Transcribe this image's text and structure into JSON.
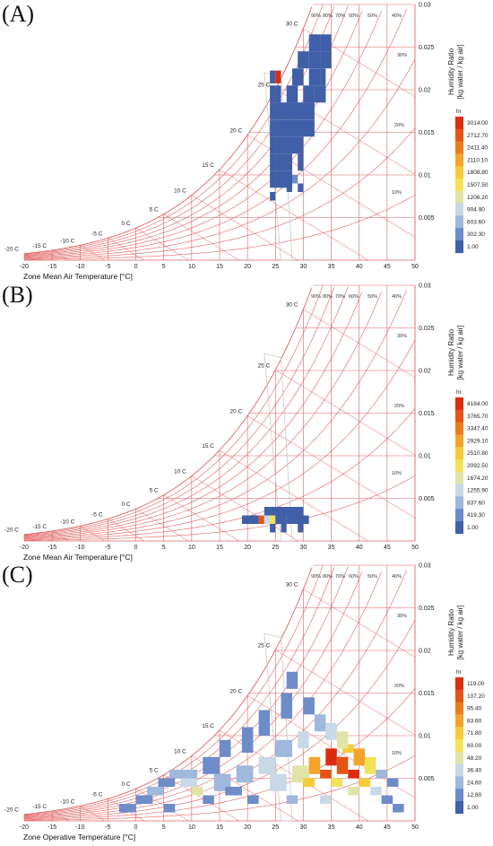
{
  "colors": {
    "grid": "#e06060",
    "boundary": "#c8c8c8",
    "scale": [
      "#3f5fa8",
      "#6d8cc8",
      "#9fb8dc",
      "#c8d8e6",
      "#e0e4a8",
      "#f2e25a",
      "#f6cc3a",
      "#f2a52a",
      "#ec7d1e",
      "#e45416",
      "#dc2c10"
    ]
  },
  "shared": {
    "x_ticks": [
      "-20",
      "-15",
      "-10",
      "-5",
      "0",
      "5",
      "10",
      "15",
      "20",
      "25",
      "30",
      "35",
      "40",
      "45",
      "50"
    ],
    "y_ticks": [
      "0.005",
      "0.01",
      "0.015",
      "0.02",
      "0.025",
      "0.03"
    ],
    "rh_labels": [
      "90%",
      "80%",
      "70%",
      "60%",
      "50%",
      "40%",
      "30%",
      "20%",
      "10%"
    ],
    "dry_labels": [
      "-20 C",
      "-15 C",
      "-10 C",
      "-5 C",
      "0 C",
      "5 C",
      "10 C",
      "15 C",
      "20 C",
      "25 C",
      "30 C"
    ],
    "side_title_1": "Humidity Ratio",
    "side_title_2": "[kg water / kg air]",
    "legend_unit": "hr"
  },
  "chart_data": [
    {
      "label": "(A)",
      "type": "heatmap",
      "xlabel": "Zone Mean Air Temperature [°C]",
      "xlim": [
        -20,
        50
      ],
      "ylim": [
        0,
        0.03
      ],
      "legend": [
        "3014.00",
        "2712.70",
        "2411.40",
        "2110.10",
        "1808.80",
        "1507.50",
        "1206.20",
        "904.90",
        "603.60",
        "302.30",
        "1.00"
      ],
      "cells": [
        [
          25,
          0.0215,
          1,
          0.0015,
          10
        ],
        [
          25,
          0.0195,
          1,
          0.002,
          0
        ],
        [
          25,
          0.0175,
          1,
          0.002,
          0
        ],
        [
          25,
          0.0155,
          1,
          0.002,
          0
        ],
        [
          24,
          0.0215,
          1,
          0.0015,
          0
        ],
        [
          24,
          0.0195,
          1,
          0.002,
          0
        ],
        [
          24,
          0.0175,
          1,
          0.002,
          0
        ],
        [
          24,
          0.0155,
          1,
          0.002,
          0
        ],
        [
          24,
          0.0135,
          1,
          0.002,
          0
        ],
        [
          24,
          0.0115,
          1,
          0.002,
          0
        ],
        [
          24,
          0.0095,
          1,
          0.002,
          0
        ],
        [
          24,
          0.0075,
          1,
          0.001,
          0
        ],
        [
          25,
          0.0135,
          1,
          0.002,
          0
        ],
        [
          25,
          0.0115,
          1,
          0.002,
          0
        ],
        [
          25,
          0.0095,
          1,
          0.002,
          0
        ],
        [
          26,
          0.0175,
          2,
          0.002,
          0
        ],
        [
          26,
          0.0155,
          2,
          0.002,
          0
        ],
        [
          26,
          0.0135,
          2,
          0.002,
          0
        ],
        [
          26,
          0.0115,
          2,
          0.002,
          0
        ],
        [
          26,
          0.0095,
          2,
          0.002,
          0
        ],
        [
          27,
          0.0195,
          2,
          0.002,
          0
        ],
        [
          28,
          0.0215,
          2,
          0.002,
          0
        ],
        [
          29,
          0.0235,
          2,
          0.002,
          0
        ],
        [
          28,
          0.0175,
          2,
          0.002,
          0
        ],
        [
          28,
          0.0155,
          2,
          0.002,
          0
        ],
        [
          28,
          0.0135,
          2,
          0.002,
          0
        ],
        [
          30,
          0.0195,
          2,
          0.002,
          0
        ],
        [
          30,
          0.0175,
          2,
          0.002,
          0
        ],
        [
          30,
          0.0155,
          2,
          0.002,
          0
        ],
        [
          31,
          0.0255,
          2,
          0.002,
          0
        ],
        [
          31,
          0.0235,
          2,
          0.002,
          0
        ],
        [
          31,
          0.0215,
          2,
          0.002,
          0
        ],
        [
          32,
          0.0195,
          2,
          0.002,
          0
        ],
        [
          33,
          0.0255,
          2,
          0.002,
          0
        ],
        [
          33,
          0.0235,
          2,
          0.002,
          0
        ],
        [
          33,
          0.0215,
          1,
          0.002,
          0
        ],
        [
          29,
          0.0115,
          1,
          0.002,
          0
        ],
        [
          28,
          0.0095,
          1,
          0.001,
          1
        ],
        [
          27,
          0.0085,
          1,
          0.001,
          0
        ],
        [
          29,
          0.0085,
          1,
          0.001,
          0
        ]
      ]
    },
    {
      "label": "(B)",
      "type": "heatmap",
      "xlabel": "Zone Mean Air Temperature [°C]",
      "xlim": [
        -20,
        50
      ],
      "ylim": [
        0,
        0.03
      ],
      "legend": [
        "4184.00",
        "3765.70",
        "3347.40",
        "2929.10",
        "2510.80",
        "2092.50",
        "1674.20",
        "1255.90",
        "837.60",
        "419.30",
        "1.00"
      ],
      "cells": [
        [
          19,
          0.0025,
          3,
          0.001,
          0
        ],
        [
          22,
          0.0025,
          1,
          0.001,
          9
        ],
        [
          23,
          0.0025,
          1,
          0.001,
          3
        ],
        [
          24,
          0.0025,
          1,
          0.001,
          5
        ],
        [
          25,
          0.0025,
          1,
          0.001,
          0
        ],
        [
          26,
          0.0025,
          1,
          0.001,
          0
        ],
        [
          27,
          0.0025,
          4,
          0.001,
          0
        ],
        [
          23,
          0.0035,
          7,
          0.001,
          0
        ],
        [
          24,
          0.0015,
          1,
          0.001,
          0
        ],
        [
          26,
          0.0015,
          1,
          0.001,
          0
        ],
        [
          29,
          0.0015,
          1,
          0.001,
          0
        ],
        [
          28,
          0.0035,
          2,
          0.001,
          0
        ]
      ]
    },
    {
      "label": "(C)",
      "type": "heatmap",
      "xlabel": "Zone Operative Temperature [°C]",
      "xlim": [
        -20,
        50
      ],
      "ylim": [
        0,
        0.03
      ],
      "legend": [
        "119.00",
        "107.20",
        "95.40",
        "83.60",
        "71.80",
        "60.00",
        "48.20",
        "36.40",
        "24.60",
        "12.80",
        "1.00"
      ],
      "cells": [
        [
          0,
          0.0025,
          3,
          0.001,
          1
        ],
        [
          2,
          0.0035,
          3,
          0.001,
          2
        ],
        [
          4,
          0.0045,
          3,
          0.001,
          1
        ],
        [
          6,
          0.0055,
          3,
          0.001,
          2
        ],
        [
          8,
          0.0045,
          3,
          0.001,
          3
        ],
        [
          10,
          0.0035,
          2,
          0.001,
          4
        ],
        [
          9,
          0.0055,
          2,
          0.001,
          2
        ],
        [
          12,
          0.0025,
          2,
          0.001,
          1
        ],
        [
          12,
          0.0065,
          3,
          0.002,
          1
        ],
        [
          14,
          0.0045,
          3,
          0.002,
          2
        ],
        [
          15,
          0.0085,
          2,
          0.002,
          1
        ],
        [
          16,
          0.0035,
          3,
          0.001,
          1
        ],
        [
          18,
          0.0055,
          3,
          0.002,
          2
        ],
        [
          19,
          0.0095,
          2,
          0.003,
          1
        ],
        [
          20,
          0.0025,
          2,
          0.001,
          1
        ],
        [
          22,
          0.0065,
          3,
          0.002,
          3
        ],
        [
          22,
          0.0115,
          2,
          0.003,
          1
        ],
        [
          24,
          0.0045,
          3,
          0.002,
          3
        ],
        [
          25,
          0.0085,
          3,
          0.002,
          2
        ],
        [
          26,
          0.0135,
          2,
          0.003,
          1
        ],
        [
          27,
          0.0025,
          2,
          0.001,
          2
        ],
        [
          28,
          0.0055,
          3,
          0.002,
          4
        ],
        [
          29,
          0.0095,
          2,
          0.002,
          3
        ],
        [
          30,
          0.0045,
          2,
          0.001,
          6
        ],
        [
          31,
          0.0065,
          2,
          0.002,
          7
        ],
        [
          33,
          0.0055,
          2,
          0.001,
          9
        ],
        [
          34,
          0.0075,
          2,
          0.002,
          10
        ],
        [
          35,
          0.0045,
          2,
          0.001,
          5
        ],
        [
          36,
          0.0065,
          2,
          0.002,
          9
        ],
        [
          37,
          0.0085,
          2,
          0.001,
          6
        ],
        [
          38,
          0.0055,
          2,
          0.001,
          10
        ],
        [
          39,
          0.0075,
          2,
          0.002,
          7
        ],
        [
          40,
          0.0045,
          2,
          0.001,
          6
        ],
        [
          41,
          0.0065,
          2,
          0.002,
          5
        ],
        [
          42,
          0.0035,
          2,
          0.001,
          3
        ],
        [
          43,
          0.0055,
          2,
          0.001,
          2
        ],
        [
          44,
          0.0025,
          2,
          0.001,
          1
        ],
        [
          45,
          0.0045,
          2,
          0.001,
          1
        ],
        [
          46,
          0.0015,
          2,
          0.001,
          1
        ],
        [
          32,
          0.0115,
          2,
          0.002,
          2
        ],
        [
          30,
          0.0135,
          2,
          0.002,
          1
        ],
        [
          34,
          0.0105,
          2,
          0.002,
          3
        ],
        [
          36,
          0.0095,
          2,
          0.002,
          4
        ],
        [
          38,
          0.0035,
          2,
          0.001,
          4
        ],
        [
          33,
          0.0025,
          2,
          0.001,
          3
        ],
        [
          -3,
          0.0015,
          3,
          0.001,
          1
        ],
        [
          5,
          0.0015,
          2,
          0.001,
          1
        ],
        [
          27,
          0.0165,
          2,
          0.002,
          1
        ]
      ]
    }
  ]
}
